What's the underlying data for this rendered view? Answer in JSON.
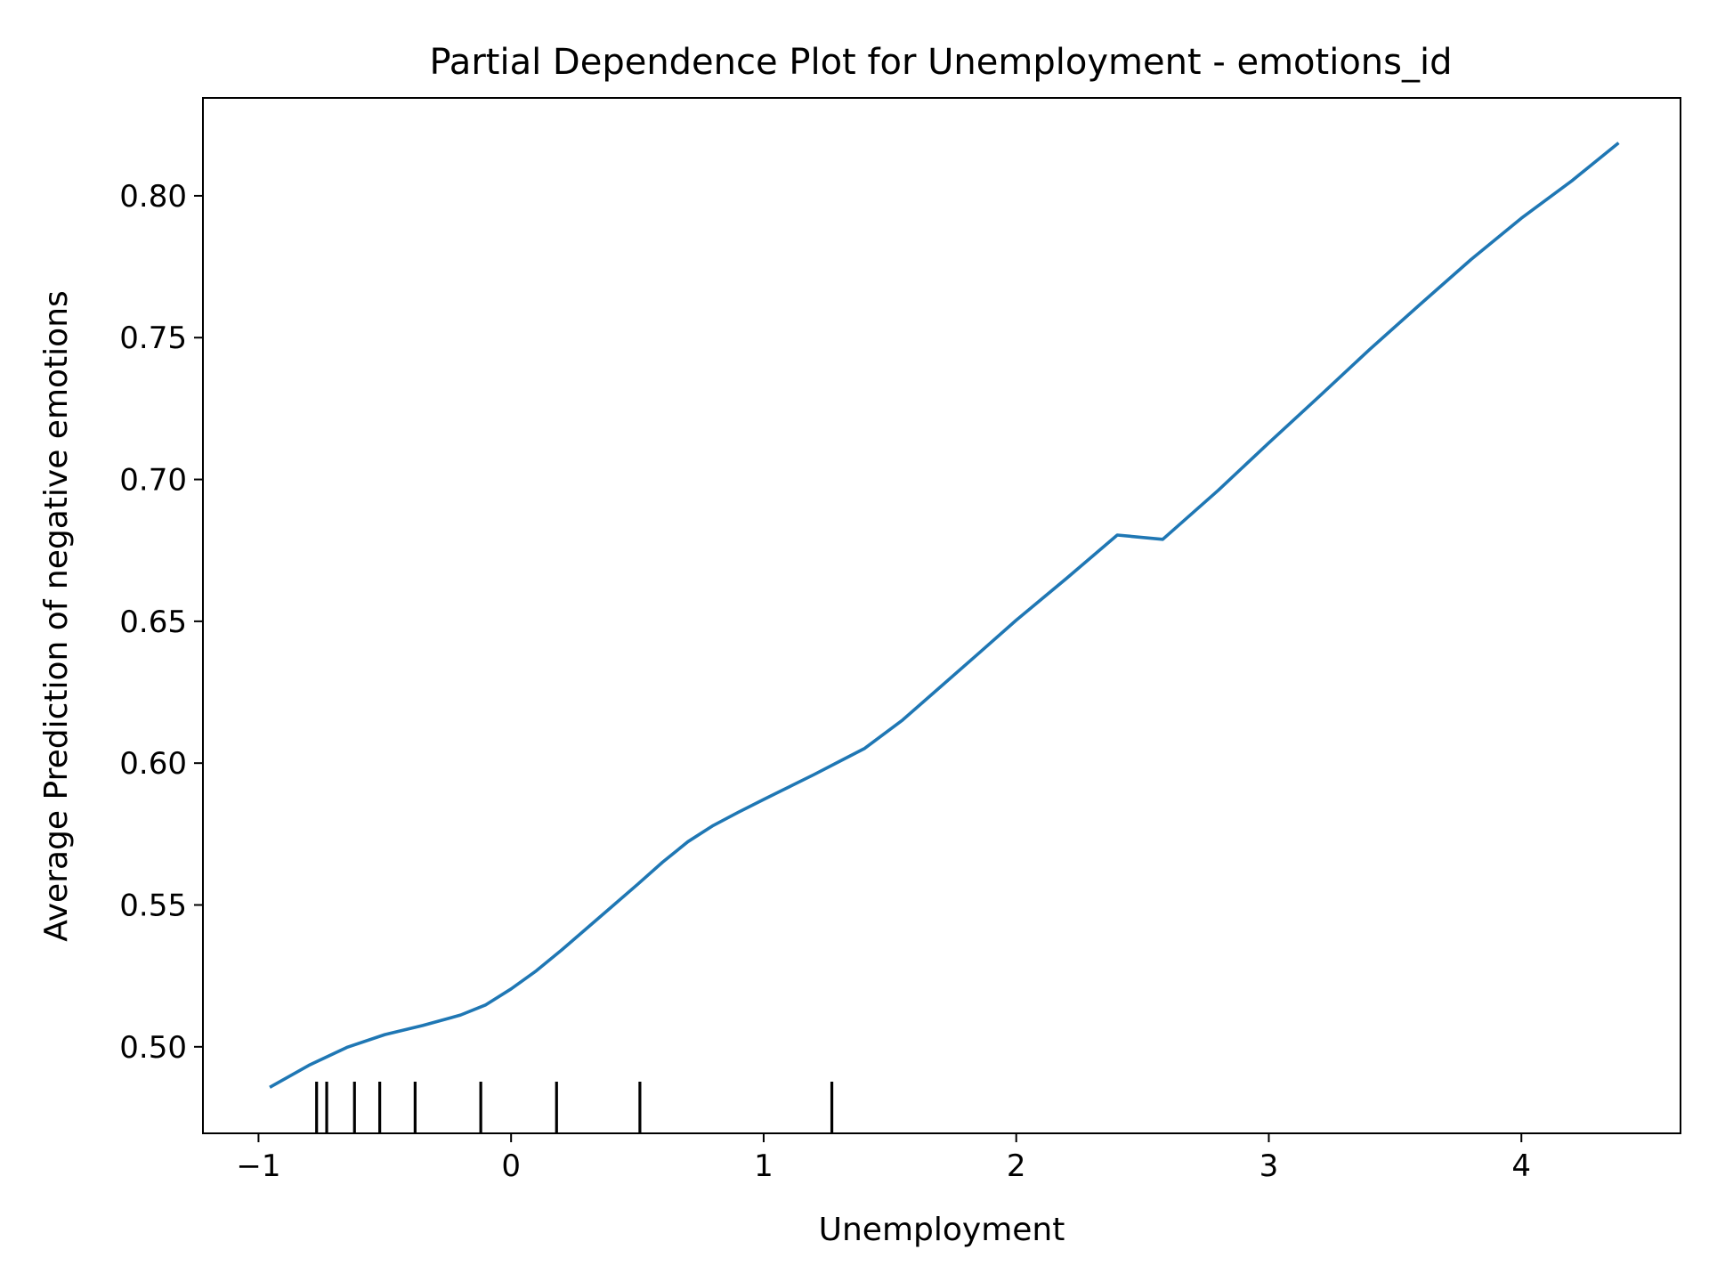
{
  "chart_data": {
    "type": "line",
    "title": "Partial Dependence Plot for Unemployment - emotions_id",
    "xlabel": "Unemployment",
    "ylabel": "Average Prediction of negative emotions",
    "xlim": [
      -1.22,
      4.63
    ],
    "ylim": [
      0.4695,
      0.8345
    ],
    "xticks": [
      -1,
      0,
      1,
      2,
      3,
      4
    ],
    "xtick_labels": [
      "−1",
      "0",
      "1",
      "2",
      "3",
      "4"
    ],
    "yticks": [
      0.5,
      0.55,
      0.6,
      0.65,
      0.7,
      0.75,
      0.8
    ],
    "ytick_labels": [
      "0.50",
      "0.55",
      "0.60",
      "0.65",
      "0.70",
      "0.75",
      "0.80"
    ],
    "grid": false,
    "series": [
      {
        "color": "#1f77b4",
        "x": [
          -0.95,
          -0.8,
          -0.65,
          -0.5,
          -0.35,
          -0.2,
          -0.1,
          0.0,
          0.1,
          0.2,
          0.3,
          0.4,
          0.5,
          0.6,
          0.7,
          0.8,
          0.9,
          1.0,
          1.1,
          1.2,
          1.3,
          1.4,
          1.55,
          1.7,
          1.85,
          2.0,
          2.2,
          2.4,
          2.58,
          2.8,
          3.0,
          3.2,
          3.4,
          3.6,
          3.8,
          4.0,
          4.2,
          4.38
        ],
        "y": [
          0.486,
          0.4935,
          0.4998,
          0.5043,
          0.5075,
          0.5112,
          0.5148,
          0.5204,
          0.5268,
          0.5341,
          0.5418,
          0.5495,
          0.5572,
          0.5651,
          0.5723,
          0.578,
          0.5827,
          0.5872,
          0.5916,
          0.596,
          0.6006,
          0.6052,
          0.6152,
          0.6269,
          0.6386,
          0.6504,
          0.6652,
          0.6804,
          0.6789,
          0.6962,
          0.7129,
          0.7293,
          0.7459,
          0.7618,
          0.7775,
          0.7921,
          0.8053,
          0.8183
        ]
      }
    ],
    "rug": {
      "color": "#000000",
      "x": [
        -0.77,
        -0.73,
        -0.62,
        -0.52,
        -0.38,
        -0.12,
        0.18,
        0.51,
        1.27
      ]
    }
  }
}
